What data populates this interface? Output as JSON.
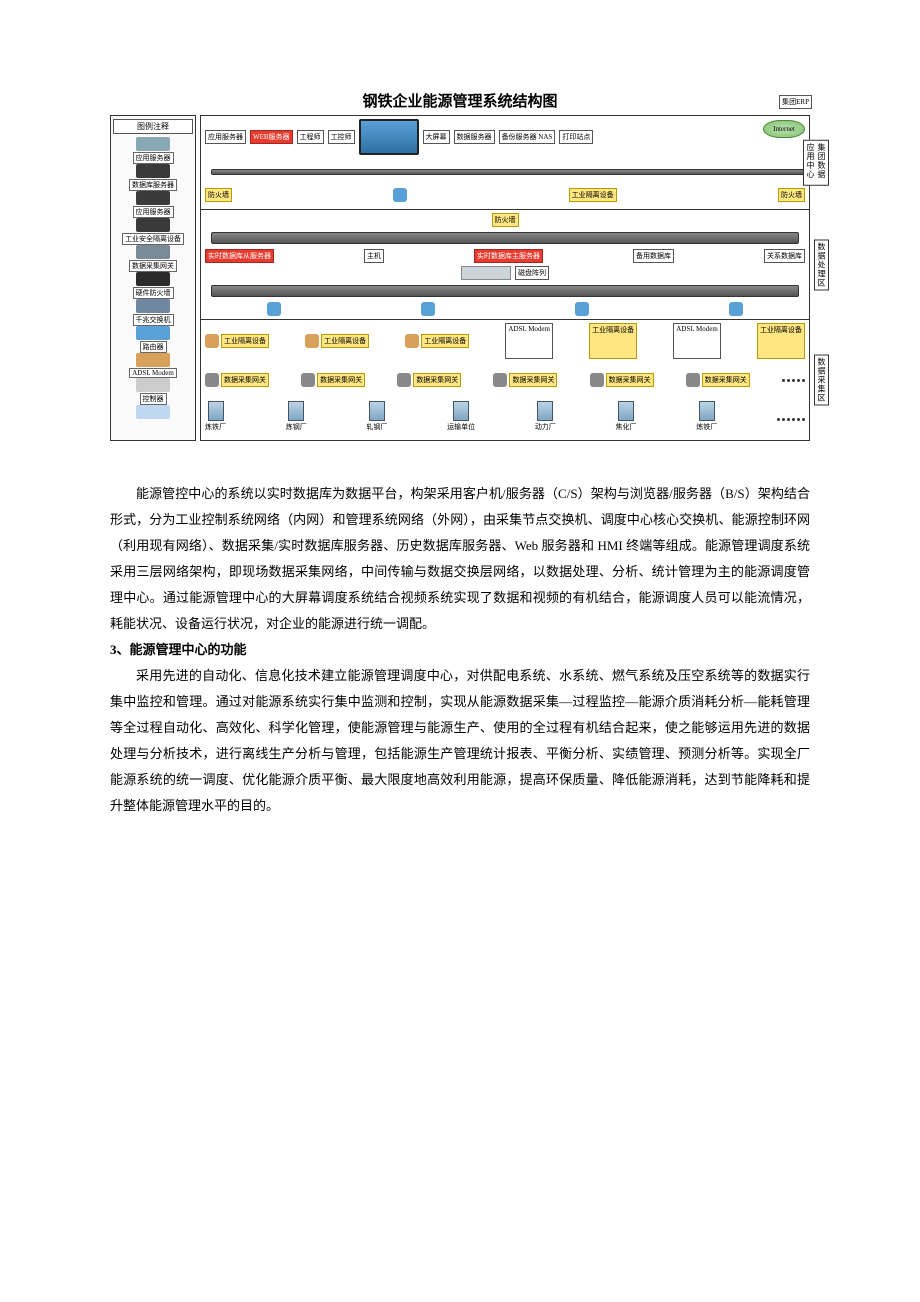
{
  "diagram": {
    "title": "钢铁企业能源管理系统结构图",
    "erp_label": "集团ERP",
    "internet_label": "Internet",
    "legend": {
      "header": "图例注释",
      "items": [
        {
          "label": "应用服务器",
          "color": "#8aa7b5"
        },
        {
          "label": "数据库服务器",
          "color": "#3a3a3a"
        },
        {
          "label": "应用服务器",
          "color": "#3a3a3a"
        },
        {
          "label": "工业安全隔离设备",
          "color": "#3a3a3a"
        },
        {
          "label": "数据采集网关",
          "color": "#7b8a99"
        },
        {
          "label": "硬件防火墙",
          "color": "#2b2b2b"
        },
        {
          "label": "千兆交换机",
          "color": "#6f87a0"
        },
        {
          "label": "路由器",
          "color": "#5aa1d8"
        },
        {
          "label": "ADSL Modem",
          "color": "#d8a05a"
        },
        {
          "label": "控制器",
          "color": "#cccccc"
        },
        {
          "label": "",
          "color": "#c0d8ef"
        }
      ]
    },
    "zones": {
      "app": {
        "tag": "集团数据应用中心",
        "boxes": [
          "应用服务器",
          "WEB服务器",
          "工程师",
          "工控师",
          "大屏幕",
          "数据服务器",
          "备份服务器 NAS",
          "打印站点",
          "防火墙",
          "工业隔离设备",
          "防火墙"
        ]
      },
      "proc": {
        "tag": "数据处理区",
        "firewall": "防火墙",
        "boxes_red": [
          "实时数据库从服务器",
          "实时数据库主服务器"
        ],
        "boxes_plain": [
          "主机",
          "备用数据库",
          "关系数据库"
        ],
        "disk": "磁盘阵列"
      },
      "collect": {
        "tag": "数据采集区",
        "equip_label": "工业隔离设备",
        "modem_label": "ADSL Modem",
        "gateway_label": "数据采集网关",
        "plants": [
          "炼铁厂",
          "炼钢厂",
          "轧钢厂",
          "运输单位",
          "动力厂",
          "焦化厂",
          "炼铁厂"
        ]
      }
    }
  },
  "text": {
    "para1": "能源管控中心的系统以实时数据库为数据平台，构架采用客户机/服务器（C/S）架构与浏览器/服务器（B/S）架构结合形式，分为工业控制系统网络（内网）和管理系统网络（外网），由采集节点交换机、调度中心核心交换机、能源控制环网（利用现有网络）、数据采集/实时数据库服务器、历史数据库服务器、Web 服务器和 HMI 终端等组成。能源管理调度系统采用三层网络架构，即现场数据采集网络，中间传输与数据交换层网络，以数据处理、分析、统计管理为主的能源调度管理中心。通过能源管理中心的大屏幕调度系统结合视频系统实现了数据和视频的有机结合，能源调度人员可以能流情况，耗能状况、设备运行状况，对企业的能源进行统一调配。",
    "heading": "3、能源管理中心的功能",
    "para2": "采用先进的自动化、信息化技术建立能源管理调度中心，对供配电系统、水系统、燃气系统及压空系统等的数据实行集中监控和管理。通过对能源系统实行集中监测和控制，实现从能源数据采集—过程监控—能源介质消耗分析—能耗管理等全过程自动化、高效化、科学化管理，使能源管理与能源生产、使用的全过程有机结合起来，使之能够运用先进的数据处理与分析技术，进行离线生产分析与管理，包括能源生产管理统计报表、平衡分析、实绩管理、预测分析等。实现全厂能源系统的统一调度、优化能源介质平衡、最大限度地高效利用能源，提高环保质量、降低能源消耗，达到节能降耗和提升整体能源管理水平的目的。"
  },
  "colors": {
    "switch": "#6f87a0",
    "router": "#5aa1d8",
    "yellow": "#ffe680"
  }
}
